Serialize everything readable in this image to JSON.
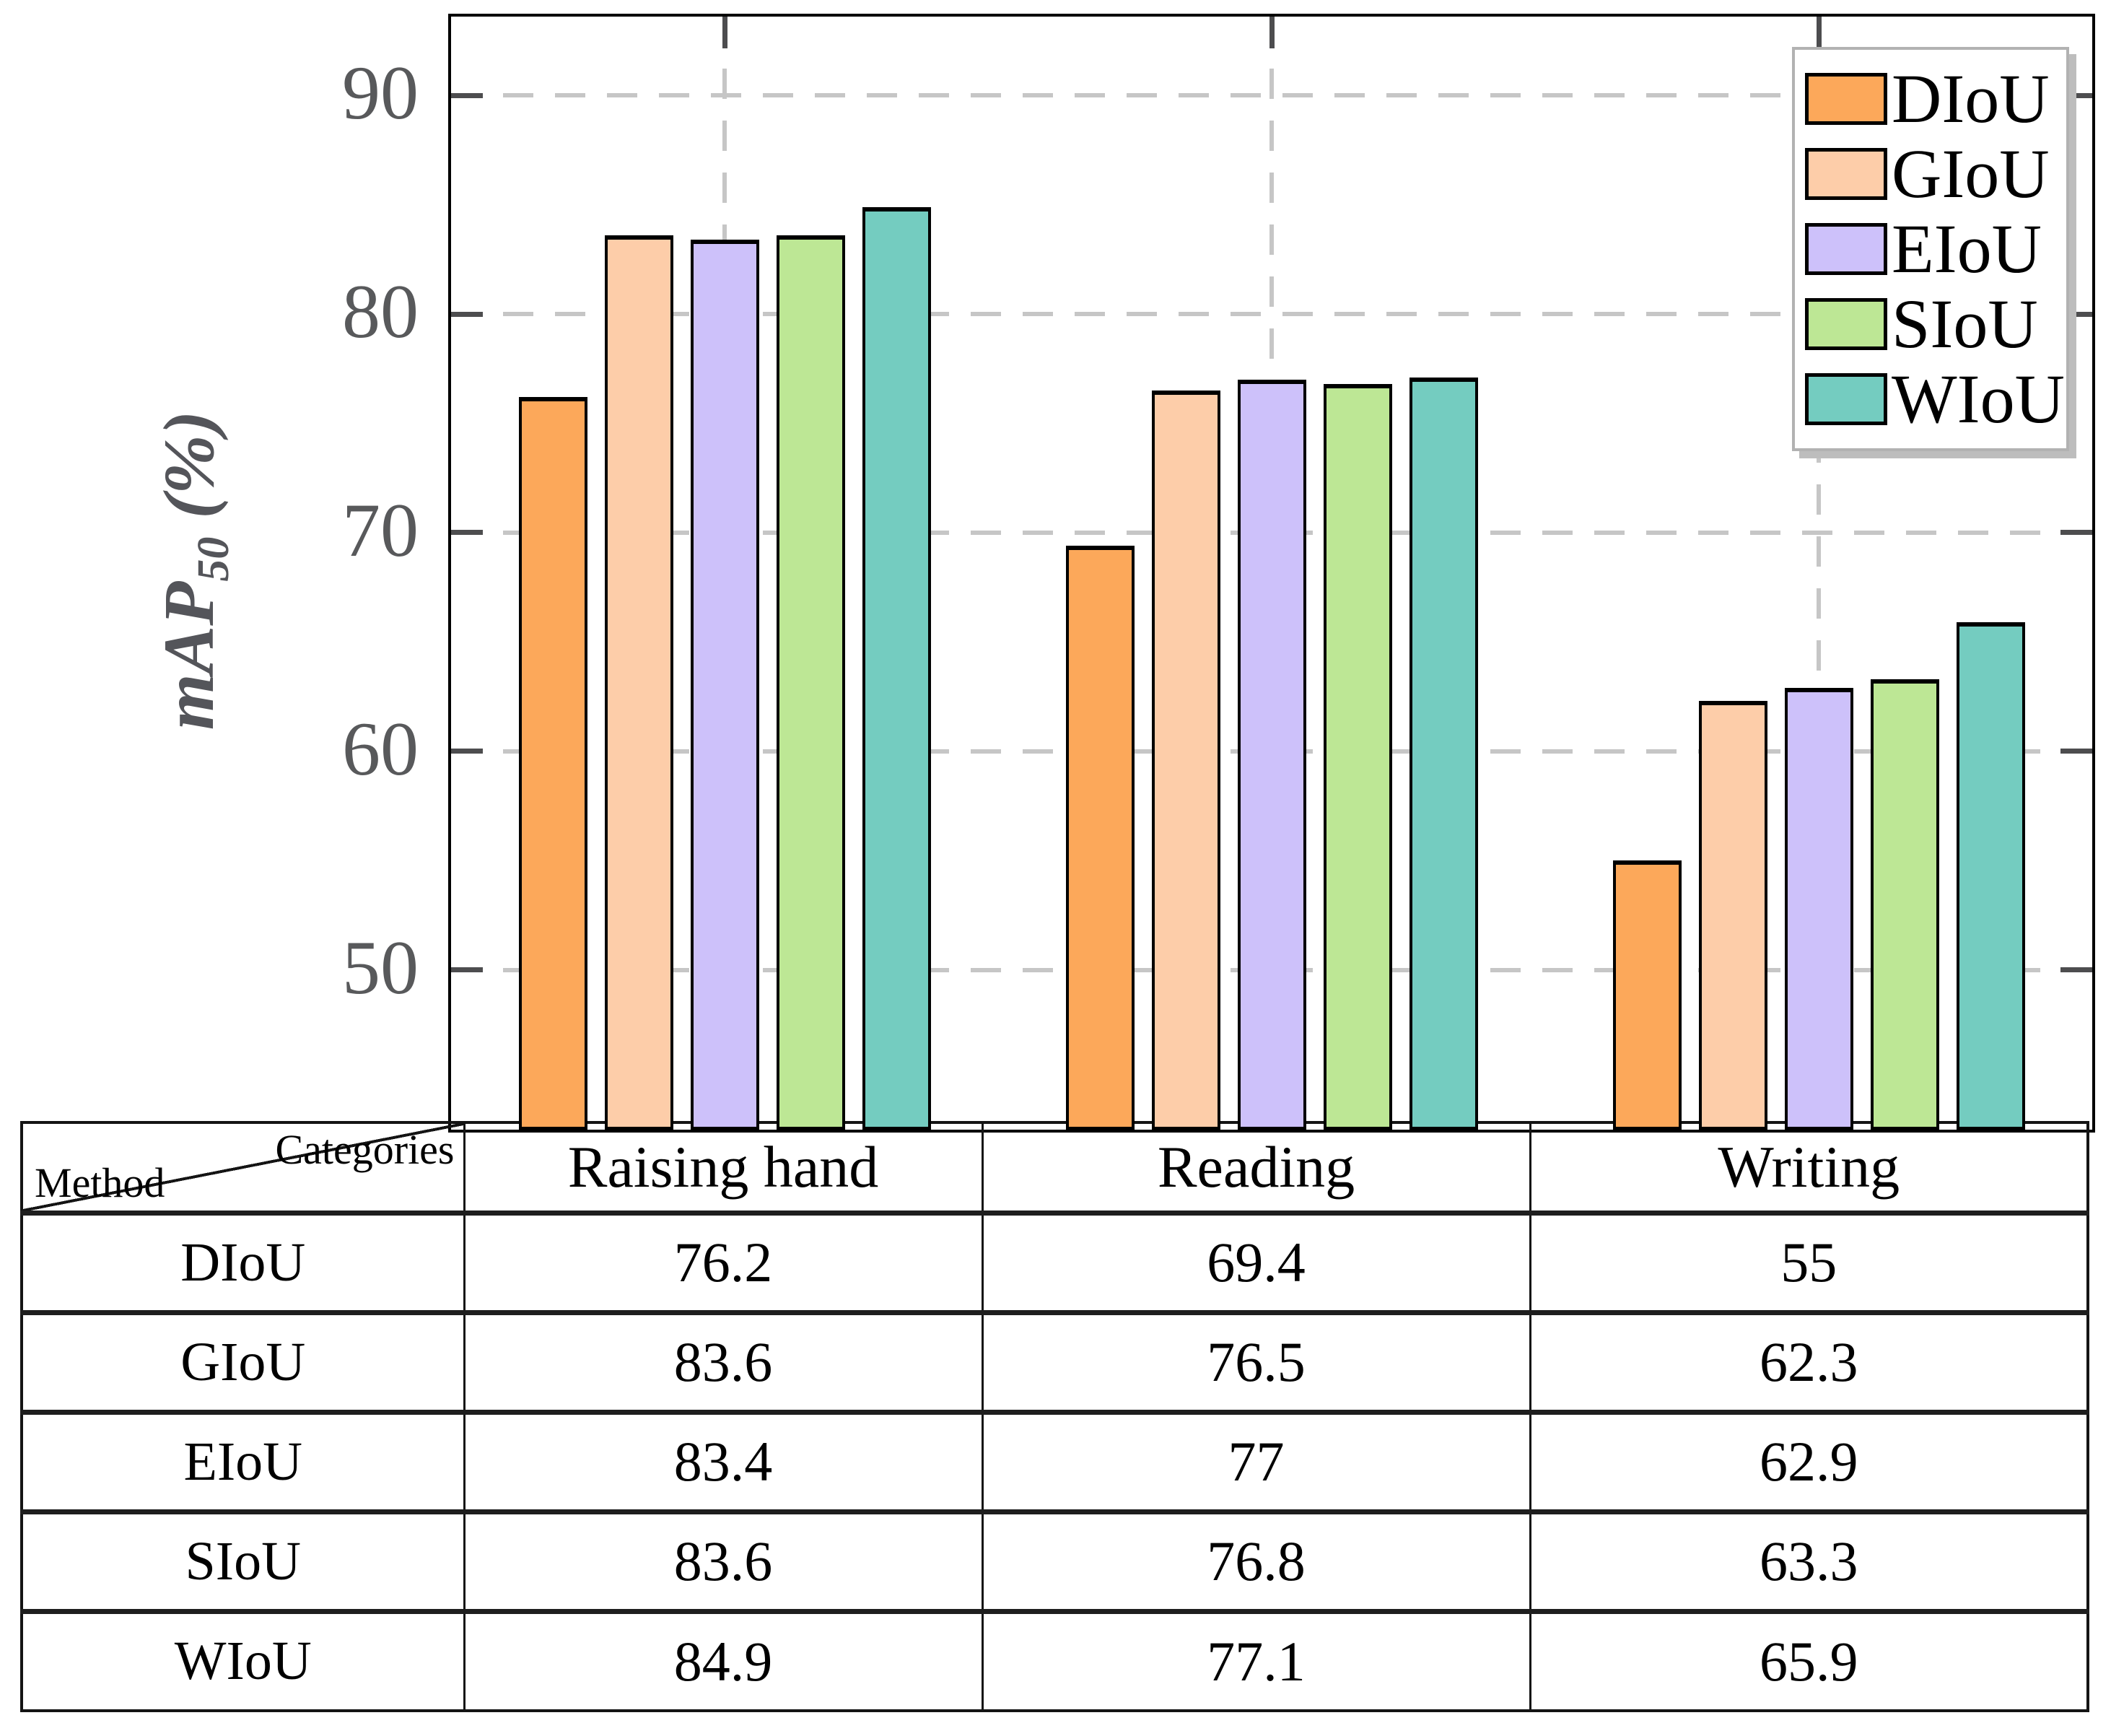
{
  "chart_data": {
    "type": "bar",
    "title": "",
    "categories": [
      "Raising hand",
      "Reading",
      "Writing"
    ],
    "series": [
      {
        "name": "DIoU",
        "color": "#FCA85A",
        "values": [
          76.2,
          69.4,
          55
        ]
      },
      {
        "name": "GIoU",
        "color": "#FDCDA9",
        "values": [
          83.6,
          76.5,
          62.3
        ]
      },
      {
        "name": "EIoU",
        "color": "#CDC1FA",
        "values": [
          83.4,
          77,
          62.9
        ]
      },
      {
        "name": "SIoU",
        "color": "#BDE795",
        "values": [
          83.6,
          76.8,
          63.3
        ]
      },
      {
        "name": "WIoU",
        "color": "#74CCC0",
        "values": [
          84.9,
          77.1,
          65.9
        ]
      }
    ],
    "xlabel": "",
    "ylabel": "mAP50 (%)",
    "yticks": [
      50,
      60,
      70,
      80,
      90
    ],
    "ylim": [
      42.7,
      93.6
    ],
    "grid": true,
    "gridline_color": "#c6c6c6",
    "axis_tick_color": "#4d4d4f",
    "tick_label_color": "#58595b",
    "legend_position": "top-right"
  },
  "yaxis": {
    "label_main": "mAP",
    "label_sub": "50",
    "label_suffix": " (%)"
  },
  "table": {
    "corner": {
      "top": "Categories",
      "bottom": "Method"
    },
    "columns": [
      "Raising hand",
      "Reading",
      "Writing"
    ],
    "rows": [
      {
        "method": "DIoU",
        "values": [
          "76.2",
          "69.4",
          "55"
        ]
      },
      {
        "method": "GIoU",
        "values": [
          "83.6",
          "76.5",
          "62.3"
        ]
      },
      {
        "method": "EIoU",
        "values": [
          "83.4",
          "77",
          "62.9"
        ]
      },
      {
        "method": "SIoU",
        "values": [
          "83.6",
          "76.8",
          "63.3"
        ]
      },
      {
        "method": "WIoU",
        "values": [
          "84.9",
          "77.1",
          "65.9"
        ]
      }
    ]
  }
}
